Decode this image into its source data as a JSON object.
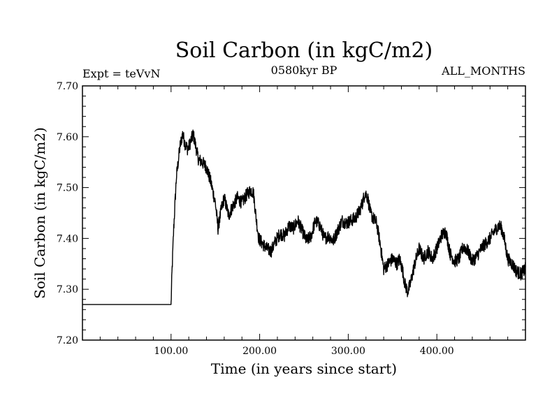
{
  "chart_data": {
    "type": "line",
    "title": "Soil Carbon (in kgC/m2)",
    "subtitle_left": "Expt = teVvN",
    "subtitle_center": "0580kyr BP",
    "subtitle_right": "ALL_MONTHS",
    "xlabel": "Time (in years since start)",
    "ylabel": "Soil Carbon (in kgC/m2)",
    "xlim": [
      0,
      500
    ],
    "ylim": [
      7.2,
      7.7
    ],
    "x_ticks": [
      100,
      200,
      300,
      400
    ],
    "x_tick_labels": [
      "100.00",
      "200.00",
      "300.00",
      "400.00"
    ],
    "y_ticks": [
      7.2,
      7.3,
      7.4,
      7.5,
      7.6,
      7.7
    ],
    "y_tick_labels": [
      "7.20",
      "7.30",
      "7.40",
      "7.50",
      "7.60",
      "7.70"
    ],
    "grid": false,
    "series": [
      {
        "name": "Soil Carbon",
        "color": "#000000",
        "noise_amplitude": 0.013,
        "x": [
          0,
          100,
          101,
          103,
          106,
          110,
          113,
          116,
          119,
          122,
          125,
          128,
          131,
          135,
          140,
          145,
          150,
          153,
          157,
          160,
          165,
          170,
          175,
          180,
          185,
          190,
          193,
          196,
          199,
          203,
          208,
          213,
          218,
          223,
          228,
          233,
          238,
          243,
          248,
          253,
          258,
          263,
          268,
          273,
          278,
          283,
          288,
          293,
          298,
          303,
          308,
          313,
          316,
          319,
          322,
          325,
          328,
          332,
          336,
          340,
          345,
          350,
          355,
          358,
          361,
          364,
          367,
          370,
          375,
          380,
          385,
          390,
          395,
          400,
          405,
          410,
          415,
          420,
          425,
          430,
          435,
          440,
          445,
          450,
          455,
          460,
          465,
          470,
          473,
          476,
          480,
          485,
          490,
          495,
          500
        ],
        "y": [
          7.27,
          7.27,
          7.33,
          7.42,
          7.52,
          7.58,
          7.605,
          7.585,
          7.575,
          7.59,
          7.605,
          7.58,
          7.555,
          7.55,
          7.54,
          7.51,
          7.47,
          7.42,
          7.46,
          7.48,
          7.445,
          7.465,
          7.48,
          7.47,
          7.485,
          7.495,
          7.49,
          7.44,
          7.4,
          7.39,
          7.38,
          7.375,
          7.395,
          7.41,
          7.405,
          7.425,
          7.42,
          7.435,
          7.415,
          7.395,
          7.405,
          7.435,
          7.425,
          7.4,
          7.405,
          7.395,
          7.415,
          7.435,
          7.43,
          7.435,
          7.44,
          7.455,
          7.47,
          7.49,
          7.48,
          7.45,
          7.44,
          7.43,
          7.39,
          7.34,
          7.35,
          7.36,
          7.35,
          7.36,
          7.34,
          7.31,
          7.295,
          7.31,
          7.35,
          7.38,
          7.36,
          7.375,
          7.36,
          7.38,
          7.405,
          7.415,
          7.37,
          7.355,
          7.36,
          7.385,
          7.375,
          7.355,
          7.365,
          7.38,
          7.39,
          7.4,
          7.415,
          7.425,
          7.42,
          7.4,
          7.36,
          7.35,
          7.335,
          7.33,
          7.34
        ]
      }
    ]
  }
}
